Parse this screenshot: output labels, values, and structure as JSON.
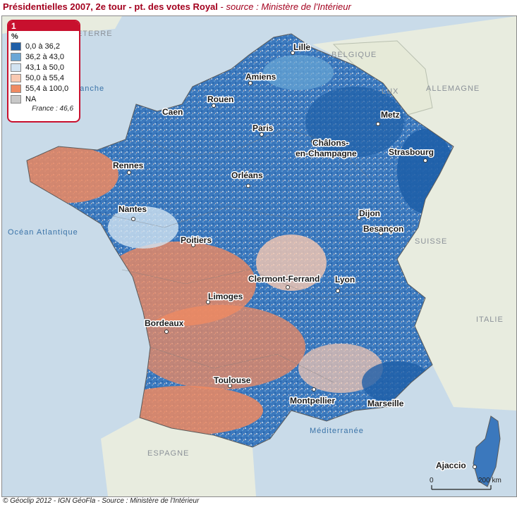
{
  "title": {
    "main": "Présidentielles 2007, 2e tour - pt. des votes Royal",
    "separator": " - ",
    "source": "source : Ministère de l'Intérieur"
  },
  "legend": {
    "id": "1",
    "unit": "%",
    "classes": [
      {
        "label": "0,0 à 36,2",
        "color": "#1f5fa8"
      },
      {
        "label": "36,2 à 43,0",
        "color": "#6aa6d6"
      },
      {
        "label": "43,1 à 50,0",
        "color": "#d2e3f1"
      },
      {
        "label": "50,0 à 55,4",
        "color": "#f9c9b2"
      },
      {
        "label": "55,4 à 100,0",
        "color": "#ef8a62"
      },
      {
        "label": "NA",
        "color": "#c8c8c8"
      }
    ],
    "national": "France : 46,6"
  },
  "cities": [
    "Lille",
    "Amiens",
    "Rouen",
    "Caen",
    "Paris",
    "Metz",
    "Châlons-",
    "en-Champagne",
    "Strasbourg",
    "Rennes",
    "Orléans",
    "Nantes",
    "Dijon",
    "Besançon",
    "Poitiers",
    "Clermont-Ferrand",
    "Lyon",
    "Limoges",
    "Bordeaux",
    "Toulouse",
    "Montpellier",
    "Marseille",
    "Ajaccio"
  ],
  "countries": [
    "ANGLETERRE",
    "BELGIQUE",
    "LUX",
    "ALLEMAGNE",
    "SUISSE",
    "ITALIE",
    "ESPAGNE"
  ],
  "seas": [
    "Manche",
    "Océan Atlantique",
    "Méditerranée"
  ],
  "scale": {
    "start": "0",
    "end": "200 km"
  },
  "footer": "© Géoclip 2012 - IGN GéoFla - Source : Ministère de l'Intérieur"
}
